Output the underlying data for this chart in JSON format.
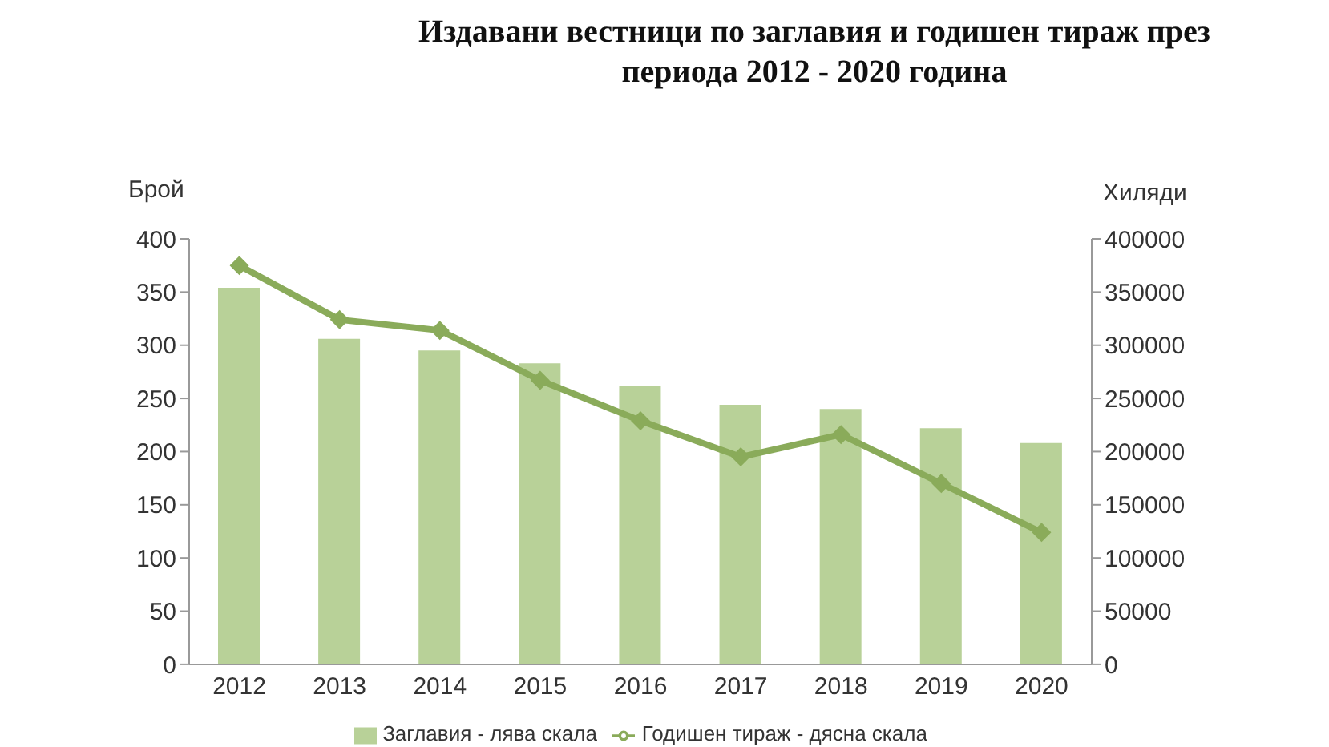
{
  "chart_data": {
    "type": "bar",
    "title": "Издавани вестници по заглавия и годишен тираж през периода 2012 - 2020 година",
    "ylabel": "Брой",
    "y2label": "Хиляди",
    "categories": [
      "2012",
      "2013",
      "2014",
      "2015",
      "2016",
      "2017",
      "2018",
      "2019",
      "2020"
    ],
    "series": [
      {
        "name": "Заглавия - лява скала",
        "color": "#b8d198",
        "values": [
          354,
          306,
          295,
          283,
          262,
          244,
          240,
          222,
          208
        ]
      },
      {
        "name": "Годишен тираж - дясна скала",
        "type": "line",
        "axis": "y2",
        "color": "#8aab5a",
        "marker": "diamond",
        "values": [
          375000,
          324000,
          314000,
          267000,
          229000,
          195000,
          216000,
          170000,
          124000
        ]
      }
    ],
    "ylim": [
      0,
      400
    ],
    "yticks": [
      0,
      50,
      100,
      150,
      200,
      250,
      300,
      350,
      400
    ],
    "y2lim": [
      0,
      400000
    ],
    "y2ticks": [
      0,
      50000,
      100000,
      150000,
      200000,
      250000,
      300000,
      350000,
      400000
    ],
    "grid": false,
    "legend": "bottom"
  }
}
